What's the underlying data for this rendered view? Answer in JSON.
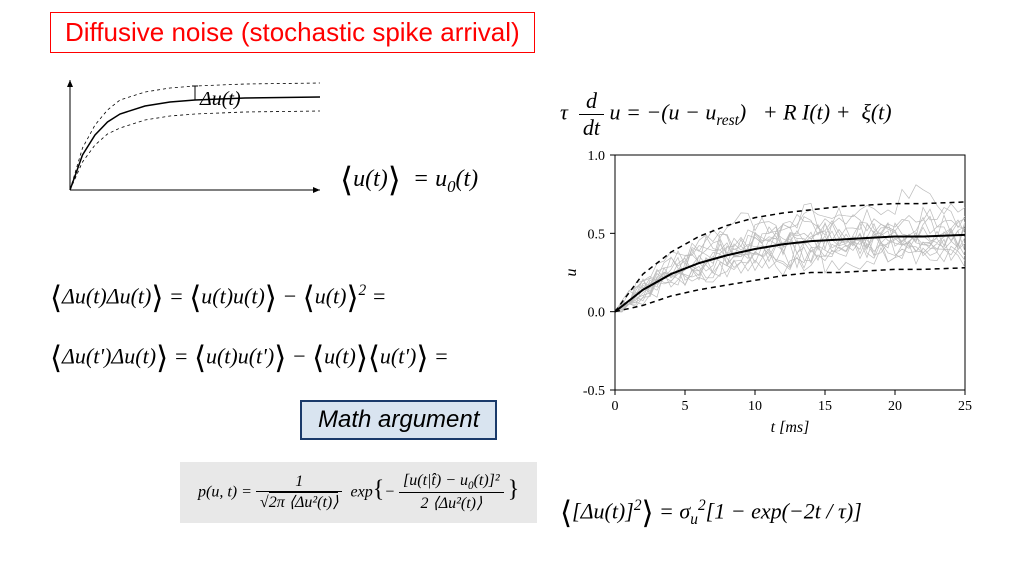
{
  "title": "Diffusive noise (stochastic spike arrival)",
  "title_color": "#ff0000",
  "title_border": "#ff0000",
  "title_fontsize": 26,
  "sketch": {
    "type": "line",
    "label_delta_u": "Δu(t)",
    "xlim": [
      0,
      10
    ],
    "ylim": [
      0,
      1.1
    ],
    "mean_curve": [
      [
        0,
        0
      ],
      [
        0.5,
        0.35
      ],
      [
        1,
        0.55
      ],
      [
        1.5,
        0.68
      ],
      [
        2,
        0.76
      ],
      [
        3,
        0.84
      ],
      [
        4,
        0.88
      ],
      [
        5,
        0.9
      ],
      [
        7,
        0.92
      ],
      [
        10,
        0.93
      ]
    ],
    "upper_curve": [
      [
        0,
        0
      ],
      [
        0.5,
        0.42
      ],
      [
        1,
        0.65
      ],
      [
        1.5,
        0.8
      ],
      [
        2,
        0.9
      ],
      [
        3,
        0.98
      ],
      [
        4,
        1.02
      ],
      [
        5,
        1.04
      ],
      [
        7,
        1.06
      ],
      [
        10,
        1.07
      ]
    ],
    "lower_curve": [
      [
        0,
        0
      ],
      [
        0.5,
        0.28
      ],
      [
        1,
        0.45
      ],
      [
        1.5,
        0.56
      ],
      [
        2,
        0.62
      ],
      [
        3,
        0.7
      ],
      [
        4,
        0.74
      ],
      [
        5,
        0.76
      ],
      [
        7,
        0.78
      ],
      [
        10,
        0.79
      ]
    ],
    "line_color": "#000000",
    "dash_pattern": "3,3",
    "background_color": "#ffffff"
  },
  "equations": {
    "mean": "⟨u(t)⟩ = u₀(t)",
    "langevin": "τ (d/dt) u = −(u − u_rest)   + R I(t) +   ξ(t)",
    "autocorr1": "⟨Δu(t)Δu(t)⟩ = ⟨u(t)u(t)⟩ − ⟨u(t)⟩² =",
    "autocorr2": "⟨Δu(t')Δu(t)⟩ = ⟨u(t)u(t')⟩ − ⟨u(t)⟩⟨u(t')⟩ =",
    "gaussian": "p(u,t) = 1 / √(2π⟨Δu²(t)⟩) · exp{ −[u(t|t̂) − u₀(t)]² / (2⟨Δu²(t)⟩) }",
    "variance": "⟨[Δu(t)]²⟩ = σ_u² [1 − exp(−2t / τ)]"
  },
  "math_arg_label": "Math argument",
  "math_arg_bg": "#d9e4f0",
  "math_arg_border": "#1a3a6a",
  "gaussian_bg": "#e8e8e8",
  "sim_chart": {
    "type": "line",
    "xlabel": "t [ms]",
    "ylabel": "u",
    "xlim": [
      0,
      25
    ],
    "ylim": [
      -0.5,
      1.0
    ],
    "xticks": [
      0,
      5,
      10,
      15,
      20,
      25
    ],
    "yticks": [
      -0.5,
      0.0,
      0.5,
      1.0
    ],
    "tick_fontsize": 14,
    "label_fontsize": 16,
    "noise_color": "#bbbbbb",
    "mean_color": "#000000",
    "bound_color": "#000000",
    "bound_dash": "5,4",
    "line_width_mean": 2,
    "line_width_noise": 0.7,
    "num_noise_traces": 15,
    "mean_curve": [
      [
        0,
        0
      ],
      [
        2,
        0.14
      ],
      [
        4,
        0.24
      ],
      [
        6,
        0.31
      ],
      [
        8,
        0.36
      ],
      [
        10,
        0.4
      ],
      [
        12,
        0.43
      ],
      [
        14,
        0.45
      ],
      [
        16,
        0.46
      ],
      [
        18,
        0.47
      ],
      [
        20,
        0.48
      ],
      [
        22,
        0.48
      ],
      [
        25,
        0.49
      ]
    ],
    "upper_curve": [
      [
        0,
        0
      ],
      [
        2,
        0.24
      ],
      [
        4,
        0.38
      ],
      [
        6,
        0.48
      ],
      [
        8,
        0.55
      ],
      [
        10,
        0.6
      ],
      [
        12,
        0.63
      ],
      [
        14,
        0.65
      ],
      [
        16,
        0.67
      ],
      [
        18,
        0.68
      ],
      [
        20,
        0.69
      ],
      [
        22,
        0.69
      ],
      [
        25,
        0.7
      ]
    ],
    "lower_curve": [
      [
        0,
        0
      ],
      [
        2,
        0.04
      ],
      [
        4,
        0.1
      ],
      [
        6,
        0.14
      ],
      [
        8,
        0.17
      ],
      [
        10,
        0.2
      ],
      [
        12,
        0.23
      ],
      [
        14,
        0.25
      ],
      [
        16,
        0.25
      ],
      [
        18,
        0.26
      ],
      [
        20,
        0.27
      ],
      [
        22,
        0.27
      ],
      [
        25,
        0.28
      ]
    ],
    "background_color": "#ffffff",
    "border_color": "#000000"
  }
}
